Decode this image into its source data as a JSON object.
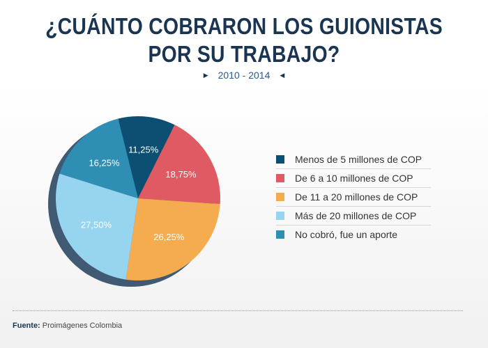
{
  "title_line1": "¿CUÁNTO COBRARON LOS GUIONISTAS",
  "title_line2": "POR SU TRABAJO?",
  "subtitle": "2010 - 2014",
  "source_label": "Fuente:",
  "source_text": "Proimágenes Colombia",
  "chart_data": {
    "type": "pie",
    "categories": [
      "Menos de 5 millones de COP",
      "De 6 a 10 millones de COP",
      "De 11 a 20 millones de COP",
      "Más de 20 millones de COP",
      "No cobró, fue un aporte"
    ],
    "values": [
      11.25,
      18.75,
      26.25,
      27.5,
      16.25
    ],
    "value_labels": [
      "11,25%",
      "18,75%",
      "26,25%",
      "27,50%",
      "16,25%"
    ],
    "colors": [
      "#0c4f73",
      "#e05a63",
      "#f5ac4f",
      "#96d4f0",
      "#2f8eb4"
    ],
    "legend_placement": "right"
  }
}
